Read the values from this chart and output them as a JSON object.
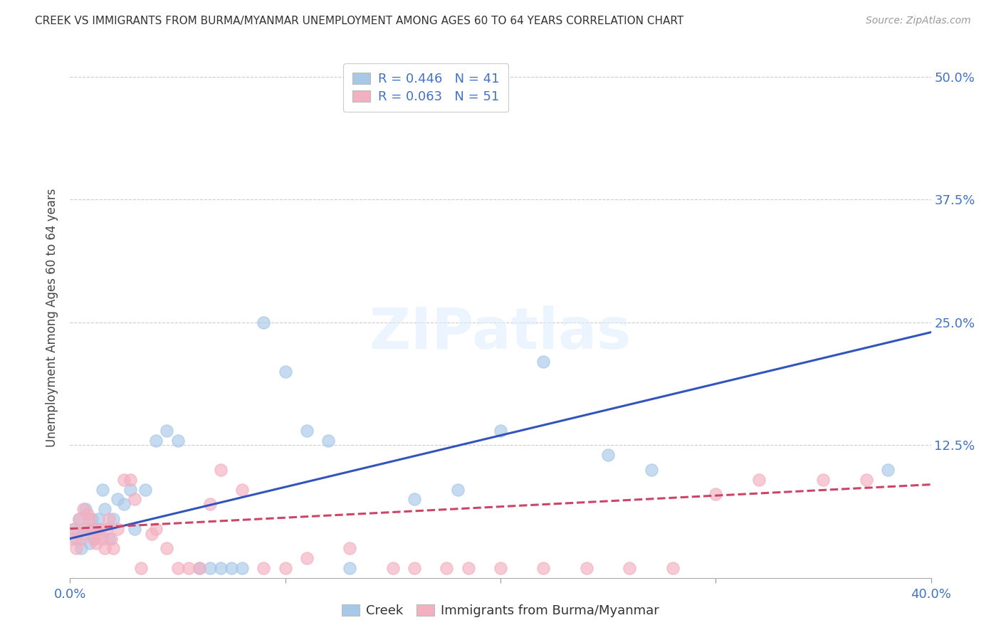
{
  "title": "CREEK VS IMMIGRANTS FROM BURMA/MYANMAR UNEMPLOYMENT AMONG AGES 60 TO 64 YEARS CORRELATION CHART",
  "source": "Source: ZipAtlas.com",
  "tick_color": "#4472c4",
  "ylabel": "Unemployment Among Ages 60 to 64 years",
  "xlim": [
    0.0,
    0.4
  ],
  "ylim": [
    -0.01,
    0.52
  ],
  "ytick_labels_right": [
    "50.0%",
    "37.5%",
    "25.0%",
    "12.5%",
    ""
  ],
  "yticks_right": [
    0.5,
    0.375,
    0.25,
    0.125,
    0.0
  ],
  "creek_color": "#a8c8e8",
  "myanmar_color": "#f4afc0",
  "creek_line_color": "#3355bb",
  "myanmar_line_color": "#cc4466",
  "R_creek": 0.446,
  "N_creek": 41,
  "R_myanmar": 0.063,
  "N_myanmar": 51,
  "legend_label_creek": "Creek",
  "legend_label_myanmar": "Immigrants from Burma/Myanmar",
  "creek_x": [
    0.002,
    0.003,
    0.004,
    0.005,
    0.006,
    0.007,
    0.008,
    0.009,
    0.01,
    0.011,
    0.012,
    0.013,
    0.015,
    0.016,
    0.018,
    0.02,
    0.022,
    0.025,
    0.028,
    0.03,
    0.035,
    0.04,
    0.045,
    0.05,
    0.06,
    0.065,
    0.07,
    0.075,
    0.08,
    0.09,
    0.1,
    0.11,
    0.12,
    0.13,
    0.16,
    0.18,
    0.2,
    0.22,
    0.25,
    0.27,
    0.38
  ],
  "creek_y": [
    0.04,
    0.03,
    0.05,
    0.02,
    0.035,
    0.06,
    0.04,
    0.025,
    0.05,
    0.03,
    0.04,
    0.05,
    0.08,
    0.06,
    0.03,
    0.05,
    0.07,
    0.065,
    0.08,
    0.04,
    0.08,
    0.13,
    0.14,
    0.13,
    0.0,
    0.0,
    0.0,
    0.0,
    0.0,
    0.25,
    0.2,
    0.14,
    0.13,
    0.0,
    0.07,
    0.08,
    0.14,
    0.21,
    0.115,
    0.1,
    0.1
  ],
  "myanmar_x": [
    0.001,
    0.002,
    0.003,
    0.004,
    0.005,
    0.006,
    0.007,
    0.008,
    0.009,
    0.01,
    0.011,
    0.012,
    0.013,
    0.014,
    0.015,
    0.016,
    0.017,
    0.018,
    0.019,
    0.02,
    0.022,
    0.025,
    0.028,
    0.03,
    0.033,
    0.038,
    0.04,
    0.045,
    0.05,
    0.055,
    0.06,
    0.065,
    0.07,
    0.08,
    0.09,
    0.1,
    0.11,
    0.13,
    0.15,
    0.16,
    0.175,
    0.185,
    0.2,
    0.22,
    0.24,
    0.26,
    0.28,
    0.3,
    0.32,
    0.35,
    0.37
  ],
  "myanmar_y": [
    0.03,
    0.04,
    0.02,
    0.05,
    0.03,
    0.06,
    0.04,
    0.055,
    0.05,
    0.04,
    0.03,
    0.025,
    0.035,
    0.04,
    0.03,
    0.02,
    0.04,
    0.05,
    0.03,
    0.02,
    0.04,
    0.09,
    0.09,
    0.07,
    0.0,
    0.035,
    0.04,
    0.02,
    0.0,
    0.0,
    0.0,
    0.065,
    0.1,
    0.08,
    0.0,
    0.0,
    0.01,
    0.02,
    0.0,
    0.0,
    0.0,
    0.0,
    0.0,
    0.0,
    0.0,
    0.0,
    0.0,
    0.075,
    0.09,
    0.09,
    0.09
  ],
  "background_color": "#ffffff",
  "grid_color": "#cccccc"
}
